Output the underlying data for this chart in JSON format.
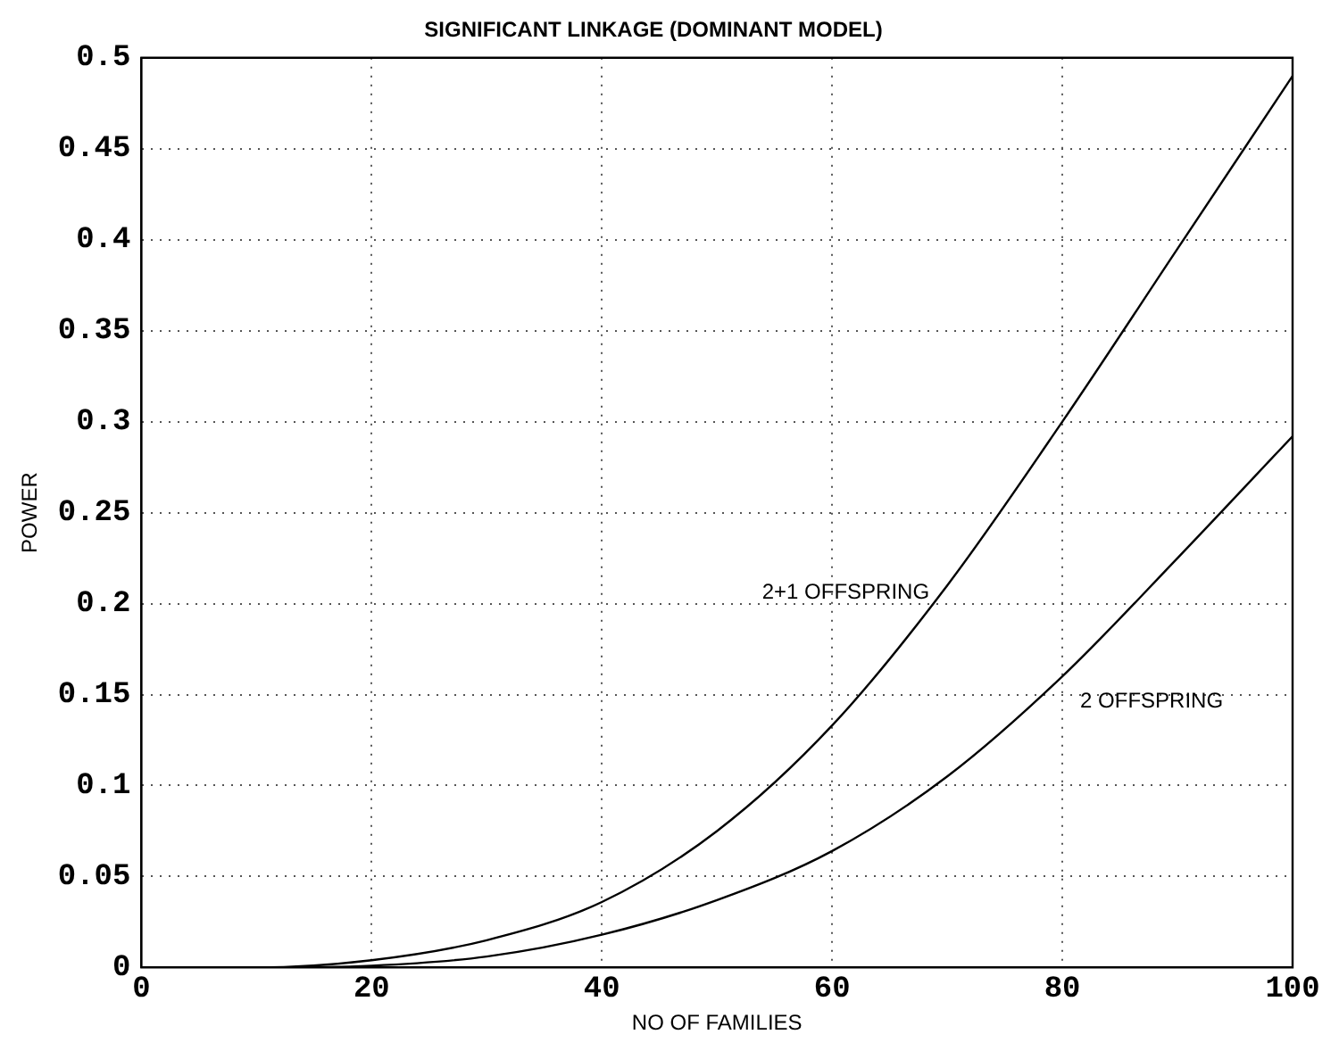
{
  "chart_data": {
    "type": "line",
    "title": "SIGNIFICANT LINKAGE (DOMINANT MODEL)",
    "xlabel": "NO OF FAMILIES",
    "ylabel": "POWER",
    "x": [
      0,
      10,
      20,
      30,
      40,
      50,
      60,
      70,
      80,
      90,
      100
    ],
    "series": [
      {
        "name": "2+1 OFFSPRING",
        "color": "#000000",
        "values": [
          0,
          0,
          0.004,
          0.015,
          0.036,
          0.075,
          0.133,
          0.21,
          0.3,
          0.395,
          0.49
        ]
      },
      {
        "name": "2 OFFSPRING",
        "color": "#000000",
        "values": [
          0,
          0,
          0.001,
          0.006,
          0.018,
          0.037,
          0.064,
          0.105,
          0.16,
          0.225,
          0.292
        ]
      }
    ],
    "xlim": [
      0,
      100
    ],
    "xticks": [
      0,
      20,
      40,
      60,
      80,
      100
    ],
    "ylim": [
      0,
      0.5
    ],
    "yticks": [
      0,
      0.05,
      0.1,
      0.15,
      0.2,
      0.25,
      0.3,
      0.35,
      0.4,
      0.45,
      0.5
    ],
    "grid": true,
    "legend": false,
    "marker": "none",
    "line_style": "solid"
  }
}
